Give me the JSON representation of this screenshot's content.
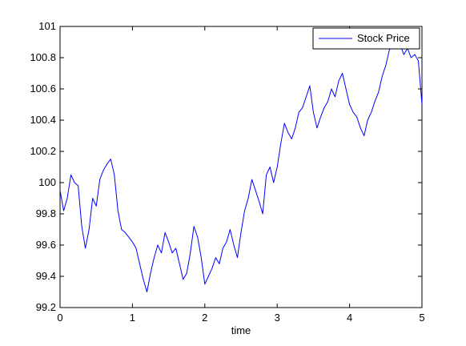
{
  "chart_data": {
    "type": "line",
    "title": "",
    "xlabel": "time",
    "ylabel": "",
    "xlim": [
      0,
      5
    ],
    "ylim": [
      99.2,
      101
    ],
    "grid": false,
    "legend_position": "top-right",
    "x_ticks": [
      "0",
      "1",
      "2",
      "3",
      "4",
      "5"
    ],
    "y_ticks": [
      "99.2",
      "99.4",
      "99.6",
      "99.8",
      "100",
      "100.2",
      "100.4",
      "100.6",
      "100.8",
      "101"
    ],
    "series": [
      {
        "name": "Stock Price",
        "color": "#0000ff",
        "x": [
          0,
          0.05,
          0.1,
          0.15,
          0.2,
          0.25,
          0.3,
          0.35,
          0.4,
          0.45,
          0.5,
          0.55,
          0.6,
          0.65,
          0.7,
          0.75,
          0.8,
          0.85,
          0.9,
          0.95,
          1.0,
          1.05,
          1.1,
          1.15,
          1.2,
          1.25,
          1.3,
          1.35,
          1.4,
          1.45,
          1.5,
          1.55,
          1.6,
          1.65,
          1.7,
          1.75,
          1.8,
          1.85,
          1.9,
          1.95,
          2.0,
          2.05,
          2.1,
          2.15,
          2.2,
          2.25,
          2.3,
          2.35,
          2.4,
          2.45,
          2.5,
          2.55,
          2.6,
          2.65,
          2.7,
          2.75,
          2.8,
          2.85,
          2.9,
          2.95,
          3.0,
          3.05,
          3.1,
          3.15,
          3.2,
          3.25,
          3.3,
          3.35,
          3.4,
          3.45,
          3.5,
          3.55,
          3.6,
          3.65,
          3.7,
          3.75,
          3.8,
          3.85,
          3.9,
          3.95,
          4.0,
          4.05,
          4.1,
          4.15,
          4.2,
          4.25,
          4.3,
          4.35,
          4.4,
          4.45,
          4.5,
          4.55,
          4.6,
          4.65,
          4.7,
          4.75,
          4.8,
          4.85,
          4.9,
          4.95,
          5.0
        ],
        "values": [
          99.95,
          99.82,
          99.9,
          100.05,
          100.0,
          99.98,
          99.72,
          99.58,
          99.7,
          99.9,
          99.85,
          100.02,
          100.08,
          100.12,
          100.15,
          100.05,
          99.82,
          99.7,
          99.68,
          99.65,
          99.62,
          99.58,
          99.48,
          99.38,
          99.3,
          99.42,
          99.52,
          99.6,
          99.55,
          99.68,
          99.62,
          99.55,
          99.58,
          99.48,
          99.38,
          99.42,
          99.55,
          99.72,
          99.65,
          99.52,
          99.35,
          99.4,
          99.45,
          99.52,
          99.48,
          99.58,
          99.62,
          99.7,
          99.6,
          99.52,
          99.68,
          99.82,
          99.9,
          100.02,
          99.95,
          99.88,
          99.8,
          100.05,
          100.1,
          100.0,
          100.1,
          100.25,
          100.38,
          100.32,
          100.28,
          100.35,
          100.45,
          100.48,
          100.55,
          100.62,
          100.45,
          100.35,
          100.42,
          100.48,
          100.52,
          100.6,
          100.55,
          100.65,
          100.7,
          100.6,
          100.5,
          100.45,
          100.42,
          100.35,
          100.3,
          100.4,
          100.45,
          100.52,
          100.58,
          100.68,
          100.75,
          100.85,
          100.9,
          100.95,
          100.88,
          100.82,
          100.86,
          100.8,
          100.82,
          100.78,
          100.5
        ]
      }
    ]
  }
}
